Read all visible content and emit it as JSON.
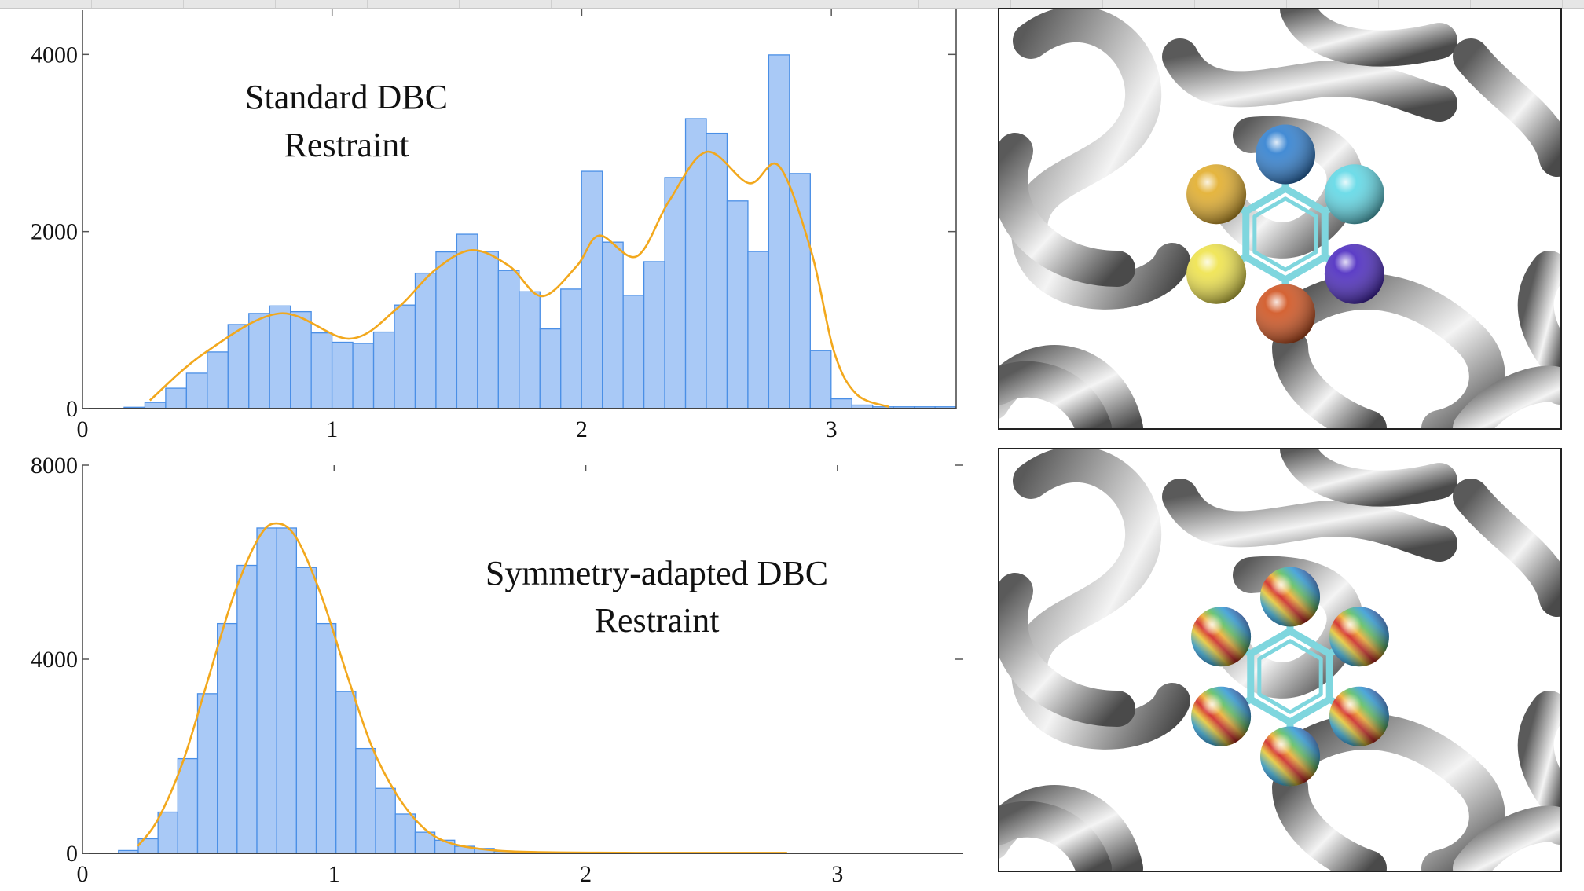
{
  "chart_data": [
    {
      "type": "bar",
      "title": [
        "Standard DBC",
        "Restraint"
      ],
      "xlabel": "",
      "ylabel": "",
      "xlim": [
        0,
        3.5
      ],
      "ylim": [
        0,
        4500
      ],
      "x_ticks": [
        "0",
        "1",
        "2",
        "3"
      ],
      "y_ticks": [
        "0",
        "2000",
        "4000"
      ],
      "bin_start": 0.1667,
      "bin_width": 0.0833,
      "values": [
        15,
        70,
        230,
        400,
        640,
        950,
        1075,
        1160,
        1095,
        855,
        750,
        737,
        865,
        1170,
        1530,
        1770,
        1970,
        1775,
        1560,
        1320,
        900,
        1350,
        2680,
        1880,
        1280,
        1660,
        2610,
        3275,
        3110,
        2345,
        1775,
        3995,
        2655,
        655,
        110,
        40,
        20,
        20,
        20,
        20
      ],
      "density_curve": {
        "x": [
          0.27,
          0.49,
          0.79,
          1.07,
          1.26,
          1.41,
          1.56,
          1.71,
          1.84,
          1.98,
          2.07,
          2.22,
          2.35,
          2.5,
          2.67,
          2.79,
          2.92,
          3.01,
          3.1,
          3.23
        ],
        "y": [
          93,
          630,
          1075,
          790,
          1130,
          1560,
          1790,
          1610,
          1270,
          1610,
          1955,
          1720,
          2345,
          2900,
          2545,
          2740,
          1770,
          650,
          165,
          20
        ]
      },
      "grid": false,
      "colors": {
        "bar_fill": "#a9c9f6",
        "bar_edge": "#4a8fe6",
        "curve": "#f2a81d"
      }
    },
    {
      "type": "bar",
      "title": [
        "Symmetry-adapted DBC",
        "Restraint"
      ],
      "xlabel": "",
      "ylabel": "",
      "xlim": [
        0,
        3.5
      ],
      "ylim": [
        0,
        8000
      ],
      "x_ticks": [
        "0",
        "1",
        "2",
        "3"
      ],
      "y_ticks": [
        "0",
        "4000",
        "8000"
      ],
      "bin_start": 0.143,
      "bin_width": 0.0786,
      "values": [
        58,
        300,
        850,
        1950,
        3290,
        4735,
        5935,
        6705,
        6705,
        5890,
        4735,
        3335,
        2160,
        1340,
        810,
        435,
        270,
        145,
        100,
        40,
        20,
        10
      ],
      "density_curve": {
        "x": [
          0.22,
          0.3,
          0.4,
          0.5,
          0.6,
          0.7,
          0.77,
          0.85,
          0.95,
          1.05,
          1.15,
          1.25,
          1.35,
          1.45,
          1.6,
          1.8,
          2.2,
          2.8
        ],
        "y": [
          150,
          700,
          1900,
          3600,
          5300,
          6500,
          6800,
          6500,
          5300,
          3700,
          2200,
          1200,
          550,
          230,
          80,
          25,
          10,
          10
        ]
      },
      "grid": false,
      "colors": {
        "bar_fill": "#a9c9f6",
        "bar_edge": "#4a8fe6",
        "curve": "#f2a81d"
      }
    }
  ],
  "images": [
    {
      "content": "protein-ribbon-with-benzene-colored-spheres",
      "sphere_colors": [
        "#2f7fd0",
        "#5fd8e6",
        "#4a28c0",
        "#d0521e",
        "#efe34a",
        "#e2ad2a"
      ]
    },
    {
      "content": "protein-ribbon-with-benzene-rainbow-spheres"
    }
  ]
}
